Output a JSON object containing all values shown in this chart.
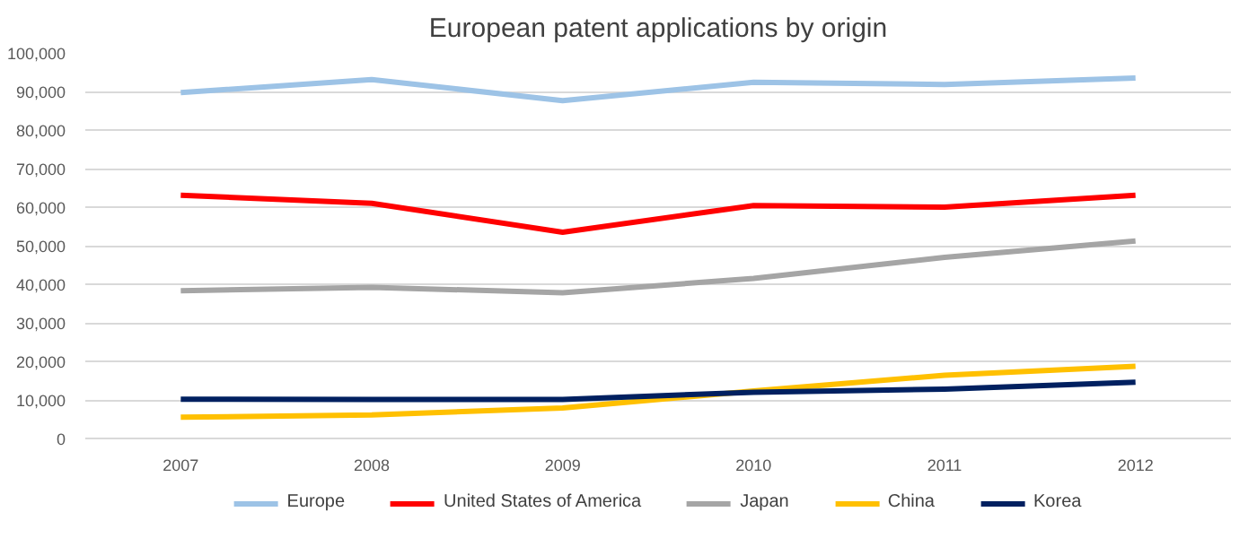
{
  "chart_data": {
    "type": "line",
    "title": "European patent applications by origin",
    "categories": [
      "2007",
      "2008",
      "2009",
      "2010",
      "2011",
      "2012"
    ],
    "series": [
      {
        "name": "Europe",
        "color": "#9dc3e6",
        "values": [
          89700,
          93100,
          87600,
          92400,
          91800,
          93500
        ]
      },
      {
        "name": "United States of America",
        "color": "#ff0000",
        "values": [
          63100,
          61000,
          53500,
          60400,
          60000,
          63100
        ]
      },
      {
        "name": "Japan",
        "color": "#a5a5a5",
        "values": [
          38300,
          39200,
          37800,
          41500,
          47000,
          51200
        ]
      },
      {
        "name": "China",
        "color": "#ffc000",
        "values": [
          5500,
          6100,
          7900,
          12300,
          16400,
          18700
        ]
      },
      {
        "name": "Korea",
        "color": "#002060",
        "values": [
          10200,
          10100,
          10100,
          12000,
          12800,
          14600
        ]
      }
    ],
    "ylim": [
      0,
      100000
    ],
    "yticks": [
      {
        "value": 0,
        "label": "0"
      },
      {
        "value": 10000,
        "label": "10,000"
      },
      {
        "value": 20000,
        "label": "20,000"
      },
      {
        "value": 30000,
        "label": "30,000"
      },
      {
        "value": 40000,
        "label": "40,000"
      },
      {
        "value": 50000,
        "label": "50,000"
      },
      {
        "value": 60000,
        "label": "60,000"
      },
      {
        "value": 70000,
        "label": "70,000"
      },
      {
        "value": 80000,
        "label": "80,000"
      },
      {
        "value": 90000,
        "label": "90,000"
      },
      {
        "value": 100000,
        "label": "100,000"
      }
    ],
    "grid": "y",
    "legend": "bottom",
    "marker": "none",
    "line_style": "solid"
  }
}
